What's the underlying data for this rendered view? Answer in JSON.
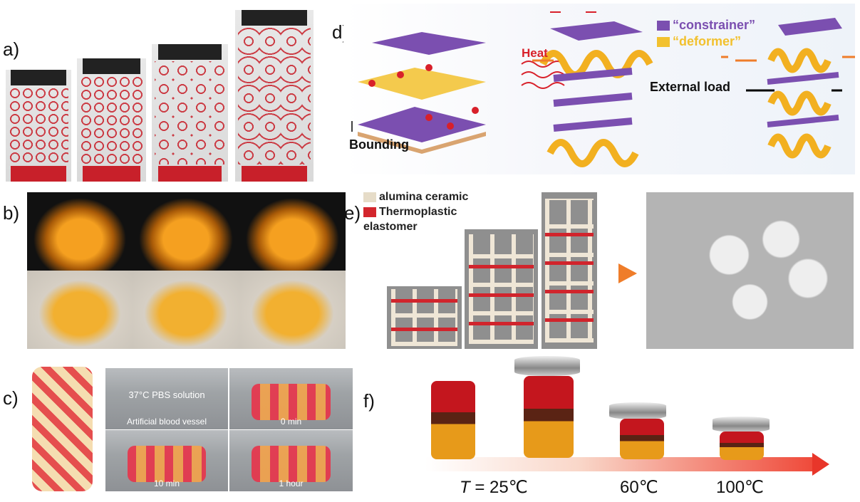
{
  "panels": {
    "a": {
      "label": "a)"
    },
    "b": {
      "label": "b)"
    },
    "c": {
      "label": "c)",
      "solution_text": "37°C PBS solution",
      "vessel_text": "Artificial blood vessel",
      "times": [
        "0 min",
        "10 min",
        "1 hour"
      ]
    },
    "d": {
      "label": "d)",
      "heat_text": "Heat",
      "bounding_text": "Bounding",
      "legend": [
        {
          "text": "“constrainer”",
          "color": "#7b4fb0"
        },
        {
          "text": "“deformer”",
          "color": "#f2c12e"
        }
      ],
      "load_text": "External load"
    },
    "e": {
      "label": "e)",
      "legend": [
        {
          "text": "alumina ceramic",
          "color": "#e6dcc8"
        },
        {
          "text": "Thermoplastic",
          "color": "#d3262d"
        }
      ],
      "legend_line2": "elastomer"
    },
    "f": {
      "label": "f)",
      "temp_prefix": "T",
      "temps": [
        " = 25℃",
        "60℃",
        "100℃"
      ]
    }
  },
  "colors": {
    "red": "#c8202a",
    "orange": "#f5a020",
    "purple": "#7b4fb0",
    "yellow": "#f2c12e",
    "arrow_orange": "#ef7d2a"
  }
}
